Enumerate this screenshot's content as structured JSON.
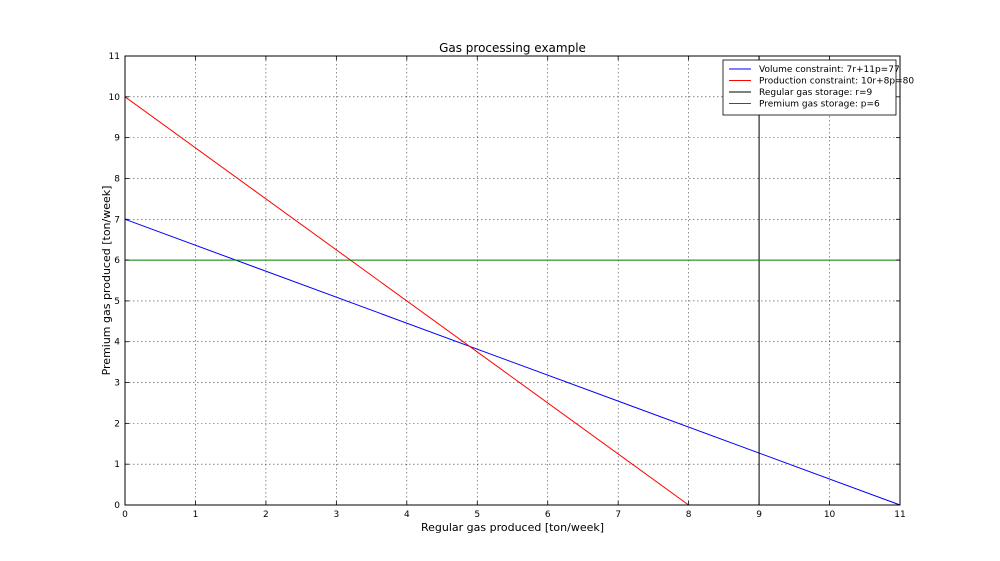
{
  "chart_data": {
    "type": "line",
    "title": "Gas processing example",
    "xlabel": "Regular gas produced [ton/week]",
    "ylabel": "Premium gas produced [ton/week]",
    "xlim": [
      0,
      11
    ],
    "ylim": [
      0,
      11
    ],
    "xticks": [
      "0",
      "1",
      "2",
      "3",
      "4",
      "5",
      "6",
      "7",
      "8",
      "9",
      "10",
      "11"
    ],
    "yticks": [
      "0",
      "1",
      "2",
      "3",
      "4",
      "5",
      "6",
      "7",
      "8",
      "9",
      "10",
      "11"
    ],
    "grid": true,
    "legend_position": "top-right",
    "series": [
      {
        "name": "Volume constraint: 7r+11p=77",
        "color": "#0000ff",
        "x": [
          0,
          11
        ],
        "y": [
          7,
          0
        ]
      },
      {
        "name": "Production constraint: 10r+8p=80",
        "color": "#ff0000",
        "x": [
          0,
          8
        ],
        "y": [
          10,
          0
        ]
      },
      {
        "name": "Regular gas storage: r=9",
        "color": "#000000",
        "x": [
          9,
          9
        ],
        "y": [
          0,
          11
        ]
      },
      {
        "name": "Premium gas storage: p=6",
        "color": "#008000",
        "x": [
          0,
          11
        ],
        "y": [
          6,
          6
        ]
      }
    ]
  }
}
